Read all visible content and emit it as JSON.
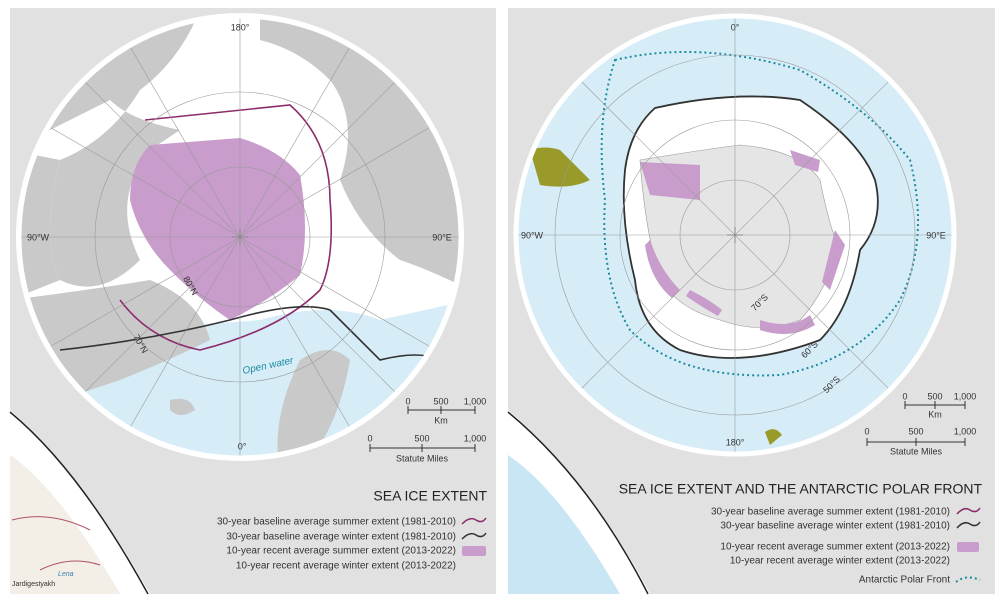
{
  "left_map": {
    "title": "SEA ICE EXTENT",
    "graticule_labels": [
      "180°",
      "90°W",
      "90°E",
      "0°",
      "80°N",
      "70°N"
    ],
    "annotations": [
      "Open water",
      "Lena",
      "Jardigestyakh"
    ],
    "scale": {
      "km": {
        "ticks": [
          "0",
          "500",
          "1,000"
        ],
        "unit": "Km"
      },
      "miles": {
        "ticks": [
          "0",
          "500",
          "1,000"
        ],
        "unit": "Statute Miles"
      }
    },
    "legend": [
      "30-year baseline average summer extent (1981-2010)",
      "30-year baseline average winter extent (1981-2010)",
      "10-year recent average summer extent (2013-2022)",
      "10-year recent average winter extent (2013-2022)"
    ]
  },
  "right_map": {
    "title": "SEA ICE EXTENT AND THE ANTARCTIC POLAR FRONT",
    "graticule_labels": [
      "0°",
      "90°W",
      "90°E",
      "180°",
      "70°S",
      "60°S",
      "50°S"
    ],
    "scale": {
      "km": {
        "ticks": [
          "0",
          "500",
          "1,000"
        ],
        "unit": "Km"
      },
      "miles": {
        "ticks": [
          "0",
          "500",
          "1,000"
        ],
        "unit": "Statute Miles"
      }
    },
    "legend": [
      "30-year baseline average summer extent (1981-2010)",
      "30-year baseline average winter extent (1981-2010)",
      "10-year recent average summer extent (2013-2022)",
      "10-year recent average winter extent (2013-2022)",
      "Antarctic Polar Front"
    ]
  }
}
